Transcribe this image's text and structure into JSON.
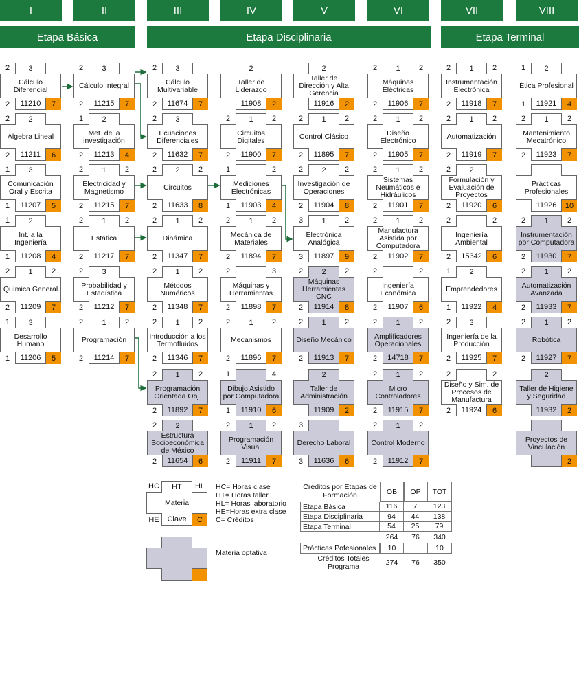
{
  "stages": [
    {
      "label": "Etapa Básica"
    },
    {
      "label": "Etapa Disciplinaria"
    },
    {
      "label": "Etapa Terminal"
    }
  ],
  "columns": [
    {
      "numeral": "I",
      "courses": [
        {
          "hc": 2,
          "ht": 3,
          "name": "Cálculo Diferencial",
          "he": 2,
          "clave": 11210,
          "cr": 7
        },
        {
          "hc": 2,
          "ht": 2,
          "name": "Álgebra Lineal",
          "he": 2,
          "clave": 11211,
          "cr": 6
        },
        {
          "hc": 1,
          "ht": 3,
          "name": "Comunicación Oral y Escrita",
          "he": 1,
          "clave": 11207,
          "cr": 5
        },
        {
          "hc": 1,
          "ht": 2,
          "name": "Int. a la Ingeniería",
          "he": 1,
          "clave": 11208,
          "cr": 4
        },
        {
          "hc": 2,
          "ht": 1,
          "hl": 2,
          "name": "Química General",
          "he": 2,
          "clave": 11209,
          "cr": 7
        },
        {
          "hc": 1,
          "ht": 3,
          "name": "Desarrollo Humano",
          "he": 1,
          "clave": 11206,
          "cr": 5
        }
      ]
    },
    {
      "numeral": "II",
      "courses": [
        {
          "hc": 2,
          "ht": 3,
          "name": "Cálculo Integral",
          "he": 2,
          "clave": 11215,
          "cr": 7
        },
        {
          "hc": 1,
          "ht": 2,
          "name": "Met. de la investigación",
          "he": 2,
          "clave": 11213,
          "cr": 4
        },
        {
          "hc": 2,
          "ht": 1,
          "hl": 2,
          "name": "Electricidad y Magnetismo",
          "he": 2,
          "clave": 11215,
          "cr": 7
        },
        {
          "hc": 2,
          "ht": 1,
          "hl": 2,
          "name": "Estática",
          "he": 2,
          "clave": 11217,
          "cr": 7
        },
        {
          "hc": 2,
          "ht": 3,
          "name": "Probabilidad y Estadística",
          "he": 2,
          "clave": 11212,
          "cr": 7
        },
        {
          "hc": 2,
          "ht": 1,
          "hl": 2,
          "name": "Programación",
          "he": 2,
          "clave": 11214,
          "cr": 7
        }
      ]
    },
    {
      "numeral": "III",
      "courses": [
        {
          "hc": 2,
          "ht": 3,
          "name": "Cálculo Multivariable",
          "he": 2,
          "clave": 11674,
          "cr": 7
        },
        {
          "hc": 2,
          "ht": 3,
          "name": "Ecuaciones Diferenciales",
          "he": 2,
          "clave": 11632,
          "cr": 7
        },
        {
          "hc": 2,
          "ht": 2,
          "hl": 2,
          "name": "Circuitos",
          "he": 2,
          "clave": 11633,
          "cr": 8
        },
        {
          "hc": 2,
          "ht": 1,
          "hl": 2,
          "name": "Dinámica",
          "he": 2,
          "clave": 11347,
          "cr": 7
        },
        {
          "hc": 2,
          "ht": 1,
          "hl": 2,
          "name": "Métodos Numéricos",
          "he": 2,
          "clave": 11348,
          "cr": 7
        },
        {
          "hc": 2,
          "ht": 1,
          "hl": 2,
          "name": "Introducción a los Termofluidos",
          "he": 2,
          "clave": 11346,
          "cr": 7
        },
        {
          "hc": 2,
          "ht": 1,
          "hl": 2,
          "name": "Programación Orientada Obj.",
          "he": 2,
          "clave": 11892,
          "cr": 7,
          "optional": true
        },
        {
          "hc": 2,
          "ht": 2,
          "name": "Estructura Socioeconómica de México",
          "he": 2,
          "clave": 11654,
          "cr": 6,
          "optional": true
        }
      ]
    },
    {
      "numeral": "IV",
      "courses": [
        {
          "ht": 2,
          "name": "Taller de Liderazgo",
          "clave": 11908,
          "cr": 2
        },
        {
          "hc": 2,
          "ht": 1,
          "hl": 2,
          "name": "Circuitos Digitales",
          "he": 2,
          "clave": 11900,
          "cr": 7
        },
        {
          "hc": 1,
          "hl": 2,
          "name": "Mediciones Electrónicas",
          "he": 1,
          "clave": 11903,
          "cr": 4
        },
        {
          "hc": 2,
          "ht": 1,
          "hl": 2,
          "name": "Mecánica de Materiales",
          "he": 2,
          "clave": 11894,
          "cr": 7
        },
        {
          "hc": 2,
          "hl": 3,
          "name": "Máquinas y Herramientas",
          "he": 2,
          "clave": 11898,
          "cr": 7
        },
        {
          "hc": 2,
          "ht": 1,
          "hl": 2,
          "name": "Mecanismos",
          "he": 2,
          "clave": 11896,
          "cr": 7
        },
        {
          "hc": 1,
          "hl": 4,
          "name": "Dibujo Asistido por Computadora",
          "he": 1,
          "clave": 11910,
          "cr": 6,
          "optional": true
        },
        {
          "hc": 2,
          "ht": 1,
          "hl": 2,
          "name": "Programación Visual",
          "he": 2,
          "clave": 11911,
          "cr": 7,
          "optional": true
        }
      ]
    },
    {
      "numeral": "V",
      "courses": [
        {
          "ht": 2,
          "name": "Taller de Dirección y Alta Gerencia",
          "clave": 11916,
          "cr": 2
        },
        {
          "hc": 2,
          "ht": 1,
          "hl": 2,
          "name": "Control Clásico",
          "he": 2,
          "clave": 11895,
          "cr": 7
        },
        {
          "hc": 2,
          "ht": 2,
          "hl": 2,
          "name": "Investigación de Operaciones",
          "he": 2,
          "clave": 11904,
          "cr": 8
        },
        {
          "hc": 3,
          "ht": 1,
          "hl": 2,
          "name": "Electrónica Analógica",
          "he": 3,
          "clave": 11897,
          "cr": 9
        },
        {
          "hc": 2,
          "ht": 2,
          "hl": 2,
          "name": "Máquinas Herramientas CNC",
          "he": 2,
          "clave": 11914,
          "cr": 8,
          "optional": true
        },
        {
          "hc": 2,
          "ht": 1,
          "hl": 2,
          "name": "Diseño Mecánico",
          "he": 2,
          "clave": 11913,
          "cr": 7,
          "optional": true
        },
        {
          "ht": 2,
          "name": "Taller de Administración",
          "clave": 11909,
          "cr": 2,
          "optional": true
        },
        {
          "hc": 3,
          "name": "Derecho Laboral",
          "he": 3,
          "clave": 11636,
          "cr": 6,
          "optional": true
        }
      ]
    },
    {
      "numeral": "VI",
      "courses": [
        {
          "hc": 2,
          "ht": 1,
          "hl": 2,
          "name": "Máquinas Eléctricas",
          "he": 2,
          "clave": 11906,
          "cr": 7
        },
        {
          "hc": 2,
          "ht": 1,
          "hl": 2,
          "name": "Diseño Electrónico",
          "he": 2,
          "clave": 11905,
          "cr": 7
        },
        {
          "hc": 2,
          "ht": 1,
          "hl": 2,
          "name": "Sistemas Neumáticos e Hidráulicos",
          "he": 2,
          "clave": 11901,
          "cr": 7
        },
        {
          "hc": 2,
          "ht": 1,
          "hl": 2,
          "name": "Manufactura Asistida por Computadora",
          "he": 2,
          "clave": 11902,
          "cr": 7
        },
        {
          "hc": 2,
          "hl": 2,
          "name": "Ingeniería Económica",
          "he": 2,
          "clave": 11907,
          "cr": 6
        },
        {
          "hc": 2,
          "ht": 1,
          "hl": 2,
          "name": "Amplificadores Operacionales",
          "he": 2,
          "clave": 14718,
          "cr": 7,
          "optional": true
        },
        {
          "hc": 2,
          "ht": 1,
          "hl": 2,
          "name": "Micro Controladores",
          "he": 2,
          "clave": 11915,
          "cr": 7,
          "optional": true
        },
        {
          "hc": 2,
          "ht": 1,
          "hl": 2,
          "name": "Control Moderno",
          "he": 2,
          "clave": 11912,
          "cr": 7,
          "optional": true
        }
      ]
    },
    {
      "numeral": "VII",
      "courses": [
        {
          "hc": 2,
          "ht": 1,
          "hl": 2,
          "name": "Instrumentación Electrónica",
          "he": 2,
          "clave": 11918,
          "cr": 7
        },
        {
          "hc": 2,
          "ht": 1,
          "hl": 2,
          "name": "Automatización",
          "he": 2,
          "clave": 11919,
          "cr": 7
        },
        {
          "hc": 2,
          "ht": 2,
          "name": "Formulación y Evaluación de Proyectos",
          "he": 2,
          "clave": 11920,
          "cr": 6
        },
        {
          "hc": 2,
          "hl": 2,
          "name": "Ingeniería Ambiental",
          "he": 2,
          "clave": 15342,
          "cr": 6
        },
        {
          "hc": 1,
          "ht": 2,
          "name": "Emprendedores",
          "he": 1,
          "clave": 11922,
          "cr": 4
        },
        {
          "hc": 2,
          "ht": 3,
          "name": "Ingeniería de la Producción",
          "he": 2,
          "clave": 11925,
          "cr": 7
        },
        {
          "hc": 2,
          "hl": 2,
          "name": "Diseño y Sim. de Procesos de Manufactura",
          "he": 2,
          "clave": 11924,
          "cr": 6
        }
      ]
    },
    {
      "numeral": "VIII",
      "courses": [
        {
          "hc": 1,
          "ht": 2,
          "name": "Ética Profesional",
          "he": 1,
          "clave": 11921,
          "cr": 4
        },
        {
          "hc": 2,
          "ht": 1,
          "hl": 2,
          "name": "Mantenimiento Mecatrónico",
          "he": 2,
          "clave": 11923,
          "cr": 7
        },
        {
          "name": "Prácticas Profesionales",
          "clave": 11926,
          "cr": 10
        },
        {
          "hc": 2,
          "ht": 1,
          "hl": 2,
          "name": "Instrumentación por Computadora",
          "he": 2,
          "clave": 11930,
          "cr": 7,
          "optional": true
        },
        {
          "hc": 2,
          "ht": 1,
          "hl": 2,
          "name": "Automatización Avanzada",
          "he": 2,
          "clave": 11933,
          "cr": 7,
          "optional": true
        },
        {
          "hc": 2,
          "ht": 1,
          "hl": 2,
          "name": "Robótica",
          "he": 2,
          "clave": 11927,
          "cr": 7,
          "optional": true
        },
        {
          "ht": 2,
          "name": "Taller de Higiene y Seguridad",
          "clave": 11932,
          "cr": 2,
          "optional": true
        },
        {
          "name": "Proyectos de Vinculación",
          "cr": 2,
          "optional": true
        }
      ]
    }
  ],
  "legend": {
    "card": {
      "hc": "HC",
      "ht": "HT",
      "hl": "HL",
      "name": "Materia",
      "he": "HE",
      "clave": "Clave",
      "cr": "C"
    },
    "definitions": [
      "HC= Horas clase",
      "HT= Horas taller",
      "HL= Horas laboratorio",
      "HE=Horas extra clase",
      "C= Créditos"
    ],
    "optional_label": "Materia optativa"
  },
  "credits_table": {
    "title": "Créditos por Etapas de Formación",
    "headers": [
      "OB",
      "OP",
      "TOT"
    ],
    "rows": [
      {
        "label": "Etapa Básica",
        "values": [
          116,
          7,
          123
        ]
      },
      {
        "label": "Etapa Disciplinaria",
        "values": [
          94,
          44,
          138
        ]
      },
      {
        "label": "Etapa Terminal",
        "values": [
          54,
          25,
          79
        ]
      }
    ],
    "subtotal": [
      264,
      76,
      340
    ],
    "practicas": {
      "label": "Prácticas Pofesionales",
      "ob": 10,
      "tot": 10
    },
    "total": {
      "label": "Créditos Totales Programa",
      "values": [
        274,
        76,
        350
      ]
    }
  }
}
